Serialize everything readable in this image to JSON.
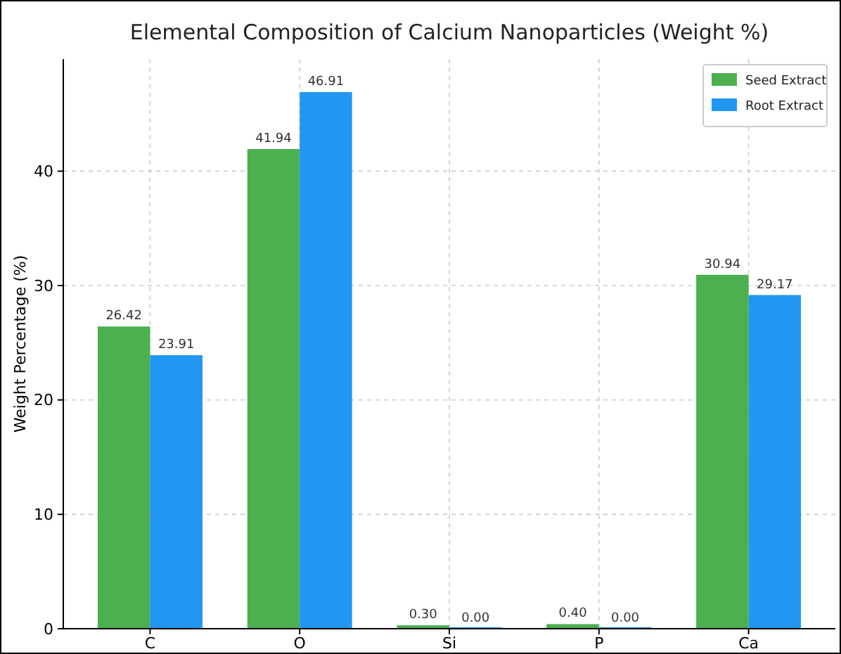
{
  "chart_data": {
    "type": "bar",
    "title": "Elemental Composition of Calcium Nanoparticles (Weight %)",
    "ylabel": "Weight Percentage (%)",
    "categories": [
      "C",
      "O",
      "Si",
      "P",
      "Ca"
    ],
    "series": [
      {
        "name": "Seed Extract",
        "color": "#4caf50",
        "values": [
          26.42,
          41.94,
          0.3,
          0.4,
          30.94
        ],
        "value_labels": [
          "26.42",
          "41.94",
          "0.30",
          "0.40",
          "30.94"
        ]
      },
      {
        "name": "Root Extract",
        "color": "#2196f3",
        "values": [
          23.91,
          46.91,
          0.0,
          0.0,
          29.17
        ],
        "value_labels": [
          "23.91",
          "46.91",
          "0.00",
          "0.00",
          "29.17"
        ]
      }
    ],
    "ylim": [
      0,
      49.8
    ],
    "yticks": [
      0,
      10,
      20,
      30,
      40
    ],
    "grid": true,
    "legend": "top right"
  }
}
